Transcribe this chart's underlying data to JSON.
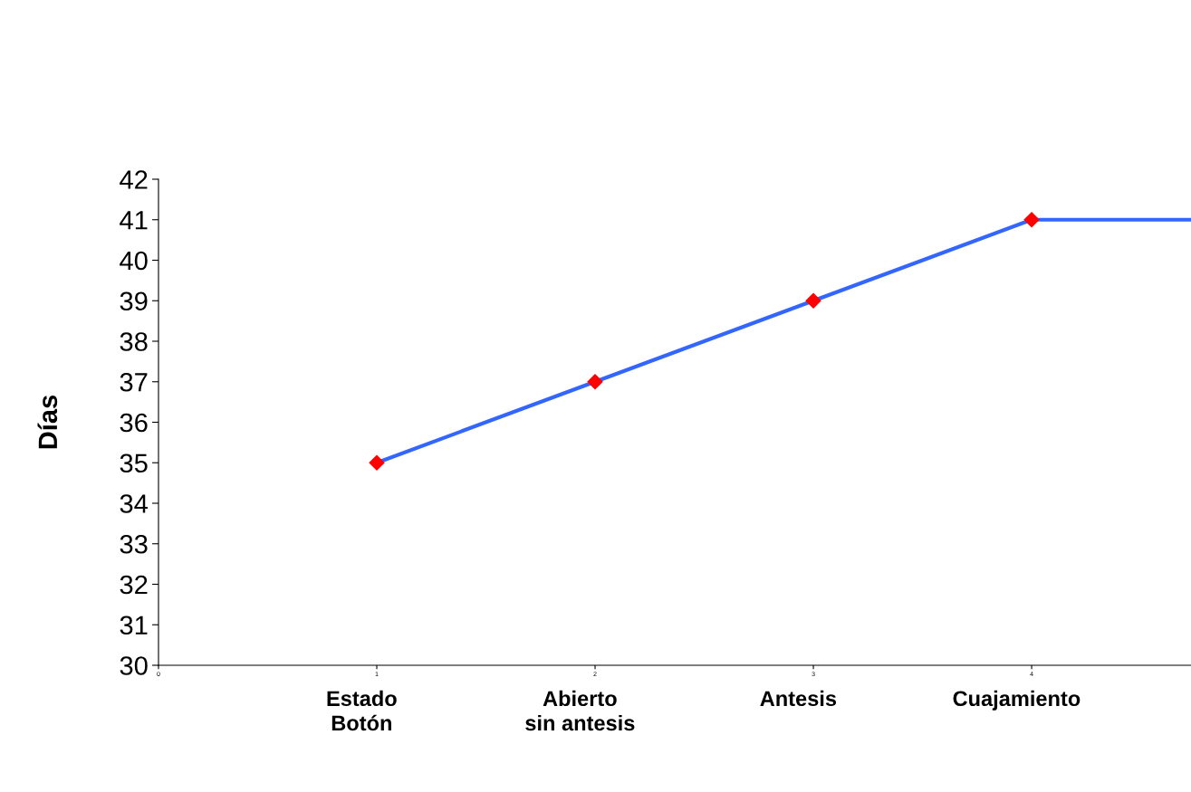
{
  "chart_data": {
    "type": "line",
    "ylabel": "Días",
    "x": [
      1,
      2,
      3,
      4
    ],
    "series": [
      {
        "color": "#3366ff",
        "values": [
          35,
          37,
          39,
          41
        ],
        "marker": "diamond",
        "colors": [
          "#ff0000",
          "#ff0000",
          "#ff0000",
          "#ff0000"
        ]
      },
      {
        "color": "#3366ff",
        "x": [
          4,
          4.73
        ],
        "values": [
          41,
          41
        ],
        "marker": "none"
      }
    ],
    "xlim": [
      0,
      4.73
    ],
    "xticks": [
      0,
      1,
      2,
      3,
      4
    ],
    "annotations": [
      "Estado\nBotón",
      "Abierto\nsin antesis",
      "Antesis",
      "Cuajamiento"
    ],
    "ylim": [
      30,
      42
    ],
    "yticks": [
      30,
      31,
      32,
      33,
      34,
      35,
      36,
      37,
      38,
      39,
      40,
      41,
      42
    ],
    "grid": false,
    "line_style": "solid"
  }
}
